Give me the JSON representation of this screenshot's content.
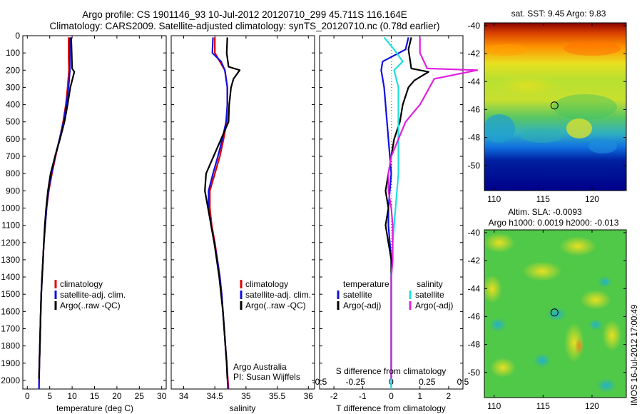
{
  "header": {
    "line1": "Argo profile: CS 1901146_93 10-Jul-2012 20120710_299 45.711S 116.164E",
    "line2": "Climatology: CARS2009. Satellite-adjusted climatology: synTS_20120710.nc (0.78d earlier)"
  },
  "side_stamp": "IMOS 16-Jul-2012 17:00:49",
  "colors": {
    "climatology": "#e00000",
    "satellite": "#1010e0",
    "argo": "#000000",
    "sal_satellite": "#20e0e0",
    "sal_argo": "#e020e0"
  },
  "chart_data": [
    {
      "type": "line",
      "xlabel": "temperature (deg C)",
      "ylabel": "",
      "xlim": [
        -1,
        31
      ],
      "ylim": [
        0,
        2050
      ],
      "y_reversed": true,
      "xticks": [
        0,
        5,
        10,
        15,
        20,
        25,
        30
      ],
      "xtick_labels": [
        "0",
        "5",
        "10",
        "15",
        "20",
        "25",
        "30"
      ],
      "yticks": [
        0,
        100,
        200,
        300,
        400,
        500,
        600,
        700,
        800,
        900,
        1000,
        1100,
        1200,
        1300,
        1400,
        1500,
        1600,
        1700,
        1800,
        1900,
        2000
      ],
      "legend": [
        "climatology",
        "satellite-adj. clim.",
        "Argo(..raw -QC)"
      ],
      "series": [
        {
          "name": "climatology",
          "color": "#e00000",
          "points": [
            [
              9.2,
              10
            ],
            [
              9.2,
              100
            ],
            [
              9.3,
              200
            ],
            [
              9.0,
              300
            ],
            [
              8.6,
              400
            ],
            [
              8.0,
              500
            ],
            [
              7.2,
              600
            ],
            [
              6.3,
              700
            ],
            [
              5.5,
              800
            ],
            [
              4.8,
              900
            ],
            [
              4.3,
              1000
            ],
            [
              4.0,
              1100
            ],
            [
              3.7,
              1200
            ],
            [
              3.5,
              1300
            ],
            [
              3.3,
              1400
            ],
            [
              3.1,
              1500
            ],
            [
              3.0,
              1600
            ],
            [
              2.9,
              1700
            ],
            [
              2.8,
              1800
            ],
            [
              2.7,
              1900
            ],
            [
              2.6,
              2050
            ]
          ]
        },
        {
          "name": "satellite-adj. clim.",
          "color": "#1010e0",
          "points": [
            [
              9.5,
              10
            ],
            [
              9.5,
              100
            ],
            [
              9.5,
              200
            ],
            [
              9.2,
              300
            ],
            [
              8.7,
              400
            ],
            [
              8.1,
              500
            ],
            [
              7.2,
              600
            ],
            [
              6.2,
              700
            ],
            [
              5.4,
              800
            ],
            [
              4.7,
              900
            ],
            [
              4.3,
              1000
            ],
            [
              4.0,
              1100
            ],
            [
              3.7,
              1200
            ],
            [
              3.5,
              1300
            ],
            [
              3.3,
              1400
            ],
            [
              3.1,
              1500
            ],
            [
              3.0,
              1600
            ],
            [
              2.9,
              1700
            ],
            [
              2.8,
              1800
            ],
            [
              2.7,
              1900
            ],
            [
              2.6,
              2050
            ]
          ]
        },
        {
          "name": "Argo(..raw -QC)",
          "color": "#000000",
          "points": [
            [
              9.8,
              10
            ],
            [
              9.9,
              100
            ],
            [
              10.0,
              190
            ],
            [
              10.5,
              210
            ],
            [
              10.0,
              260
            ],
            [
              9.6,
              300
            ],
            [
              9.0,
              400
            ],
            [
              8.3,
              500
            ],
            [
              7.3,
              600
            ],
            [
              6.2,
              700
            ],
            [
              5.2,
              800
            ],
            [
              4.6,
              900
            ],
            [
              4.2,
              1000
            ],
            [
              3.9,
              1100
            ],
            [
              3.7,
              1200
            ],
            [
              3.5,
              1300
            ],
            [
              3.3,
              1400
            ],
            [
              3.1,
              1500
            ],
            [
              3.0,
              1600
            ],
            [
              2.9,
              1700
            ],
            [
              2.8,
              1800
            ],
            [
              2.7,
              1900
            ],
            [
              2.6,
              1990
            ]
          ]
        }
      ]
    },
    {
      "type": "line",
      "xlabel": "salinity",
      "ylabel": "",
      "xlim": [
        33.8,
        36.1
      ],
      "ylim": [
        0,
        2050
      ],
      "y_reversed": true,
      "xticks": [
        34,
        34.5,
        35,
        35.5,
        36
      ],
      "xtick_labels": [
        "34",
        "34.5",
        "35",
        "35.5",
        "36"
      ],
      "legend": [
        "climatology",
        "satellite-adj. clim.",
        "Argo(..raw -QC)"
      ],
      "annotations": [
        "Argo Australia",
        "PI: Susan Wijffels"
      ],
      "series": [
        {
          "name": "climatology",
          "color": "#e00000",
          "points": [
            [
              34.5,
              10
            ],
            [
              34.5,
              100
            ],
            [
              34.58,
              150
            ],
            [
              34.66,
              200
            ],
            [
              34.7,
              300
            ],
            [
              34.7,
              400
            ],
            [
              34.69,
              500
            ],
            [
              34.64,
              600
            ],
            [
              34.58,
              700
            ],
            [
              34.5,
              800
            ],
            [
              34.42,
              900
            ],
            [
              34.42,
              1000
            ],
            [
              34.45,
              1100
            ],
            [
              34.5,
              1200
            ],
            [
              34.54,
              1300
            ],
            [
              34.58,
              1400
            ],
            [
              34.61,
              1500
            ],
            [
              34.63,
              1600
            ],
            [
              34.65,
              1700
            ],
            [
              34.67,
              1800
            ],
            [
              34.69,
              1900
            ],
            [
              34.72,
              2050
            ]
          ]
        },
        {
          "name": "satellite-adj. clim.",
          "color": "#1010e0",
          "points": [
            [
              34.47,
              10
            ],
            [
              34.46,
              100
            ],
            [
              34.6,
              150
            ],
            [
              34.66,
              200
            ],
            [
              34.7,
              300
            ],
            [
              34.7,
              400
            ],
            [
              34.68,
              500
            ],
            [
              34.62,
              600
            ],
            [
              34.55,
              700
            ],
            [
              34.47,
              800
            ],
            [
              34.4,
              900
            ],
            [
              34.4,
              1000
            ],
            [
              34.44,
              1100
            ],
            [
              34.49,
              1200
            ],
            [
              34.54,
              1300
            ],
            [
              34.58,
              1400
            ],
            [
              34.61,
              1500
            ],
            [
              34.63,
              1600
            ],
            [
              34.65,
              1700
            ],
            [
              34.67,
              1800
            ],
            [
              34.69,
              1900
            ],
            [
              34.71,
              2050
            ]
          ]
        },
        {
          "name": "Argo(..raw -QC)",
          "color": "#000000",
          "points": [
            [
              34.7,
              10
            ],
            [
              34.69,
              100
            ],
            [
              34.72,
              180
            ],
            [
              34.9,
              200
            ],
            [
              34.8,
              250
            ],
            [
              34.76,
              300
            ],
            [
              34.73,
              400
            ],
            [
              34.72,
              500
            ],
            [
              34.6,
              600
            ],
            [
              34.48,
              700
            ],
            [
              34.36,
              800
            ],
            [
              34.34,
              900
            ],
            [
              34.39,
              1000
            ],
            [
              34.44,
              1100
            ],
            [
              34.49,
              1200
            ],
            [
              34.53,
              1300
            ],
            [
              34.57,
              1400
            ],
            [
              34.6,
              1500
            ],
            [
              34.63,
              1600
            ],
            [
              34.65,
              1700
            ],
            [
              34.67,
              1800
            ],
            [
              34.69,
              1900
            ],
            [
              34.7,
              1990
            ]
          ]
        }
      ]
    },
    {
      "type": "line",
      "xlabel": "T difference from climatology",
      "xlabel_top": "S difference from climatology",
      "ylabel": "",
      "xlim": [
        -2.5,
        2.5
      ],
      "ylim": [
        0,
        2050
      ],
      "y_reversed": true,
      "xticks": [
        -2,
        -1,
        0,
        1,
        2
      ],
      "xtick_labels": [
        "-2",
        "-1",
        "0",
        "1",
        "2"
      ],
      "sxticks": [
        -0.5,
        -0.25,
        0,
        0.25,
        0.5
      ],
      "sxtick_labels": [
        "-0.5",
        "-0.25",
        "0",
        "0.25",
        "0.5"
      ],
      "legend_titles": [
        "temperature",
        "salinity"
      ],
      "legend": [
        "satellite",
        "Argo(-adj)",
        "satellite",
        "Argo(-adj)"
      ],
      "series": [
        {
          "name": "satellite",
          "group": "temperature",
          "color": "#1010e0",
          "points": [
            [
              0.6,
              10
            ],
            [
              0.5,
              80
            ],
            [
              -0.3,
              150
            ],
            [
              -0.35,
              200
            ],
            [
              -0.25,
              300
            ],
            [
              -0.2,
              400
            ],
            [
              -0.15,
              500
            ],
            [
              -0.1,
              600
            ],
            [
              -0.05,
              700
            ],
            [
              0,
              800
            ],
            [
              -0.05,
              900
            ],
            [
              -0.1,
              1000
            ],
            [
              -0.1,
              1100
            ],
            [
              -0.05,
              1200
            ],
            [
              0,
              1300
            ],
            [
              0,
              1400
            ],
            [
              0,
              1500
            ],
            [
              0,
              1600
            ],
            [
              0,
              1700
            ],
            [
              0,
              1800
            ],
            [
              0,
              1900
            ],
            [
              0,
              2050
            ]
          ]
        },
        {
          "name": "Argo(-adj)",
          "group": "temperature",
          "color": "#000000",
          "points": [
            [
              0.7,
              10
            ],
            [
              0.6,
              80
            ],
            [
              0.7,
              190
            ],
            [
              1.3,
              210
            ],
            [
              0.8,
              260
            ],
            [
              0.6,
              300
            ],
            [
              0.4,
              400
            ],
            [
              0.3,
              500
            ],
            [
              0.1,
              600
            ],
            [
              0.0,
              700
            ],
            [
              -0.1,
              800
            ],
            [
              -0.2,
              900
            ],
            [
              -0.1,
              1000
            ],
            [
              -0.2,
              1100
            ],
            [
              -0.1,
              1200
            ],
            [
              0,
              1300
            ],
            [
              0,
              1400
            ],
            [
              0,
              1500
            ],
            [
              0,
              1600
            ],
            [
              0,
              1700
            ],
            [
              0,
              1800
            ],
            [
              0,
              1900
            ],
            [
              0,
              1990
            ]
          ]
        },
        {
          "name": "satellite",
          "group": "salinity",
          "color": "#20e0e0",
          "points": [
            [
              -0.05,
              10
            ],
            [
              0.02,
              80
            ],
            [
              0.08,
              150
            ],
            [
              0.02,
              200
            ],
            [
              0.05,
              300
            ],
            [
              0.05,
              400
            ],
            [
              0.05,
              500
            ],
            [
              0.05,
              600
            ],
            [
              0.05,
              700
            ],
            [
              0.05,
              800
            ],
            [
              0.04,
              900
            ],
            [
              0.03,
              1000
            ],
            [
              0.02,
              1100
            ],
            [
              0.01,
              1200
            ],
            [
              0.01,
              1300
            ],
            [
              0,
              1400
            ],
            [
              0,
              1500
            ],
            [
              0,
              1600
            ],
            [
              0,
              1700
            ],
            [
              0,
              1800
            ],
            [
              0,
              1900
            ],
            [
              0,
              2050
            ]
          ]
        },
        {
          "name": "Argo(-adj)",
          "group": "salinity",
          "color": "#e020e0",
          "points": [
            [
              0.2,
              10
            ],
            [
              0.2,
              100
            ],
            [
              0.25,
              190
            ],
            [
              0.6,
              200
            ],
            [
              0.3,
              250
            ],
            [
              0.2,
              400
            ],
            [
              0.1,
              500
            ],
            [
              0.05,
              600
            ],
            [
              0,
              700
            ],
            [
              -0.02,
              800
            ],
            [
              -0.02,
              900
            ],
            [
              0,
              1000
            ],
            [
              0.01,
              1100
            ],
            [
              0.01,
              1200
            ],
            [
              0.01,
              1300
            ],
            [
              0,
              1400
            ],
            [
              0,
              1500
            ],
            [
              0,
              1600
            ],
            [
              0,
              1700
            ],
            [
              0,
              1800
            ],
            [
              0,
              1900
            ],
            [
              0,
              1990
            ]
          ]
        }
      ]
    },
    {
      "type": "heatmap",
      "title": "sat. SST: 9.45 Argo: 9.83",
      "xlim": [
        109,
        123.5
      ],
      "ylim": [
        -51.8,
        -39.8
      ],
      "xticks": [
        110,
        115,
        120
      ],
      "yticks": [
        -40,
        -42,
        -44,
        -46,
        -48,
        -50
      ],
      "marker": {
        "lon": 116.164,
        "lat": -45.711
      }
    },
    {
      "type": "heatmap",
      "title": "Altim. SLA: -0.0093",
      "subtitle": "Argo h1000: 0.0019 h2000: -0.013",
      "xlim": [
        109,
        123.5
      ],
      "ylim": [
        -51.8,
        -39.8
      ],
      "xticks": [
        110,
        115,
        120
      ],
      "yticks": [
        -40,
        -42,
        -44,
        -46,
        -48,
        -50
      ],
      "marker": {
        "lon": 116.164,
        "lat": -45.711
      }
    }
  ]
}
